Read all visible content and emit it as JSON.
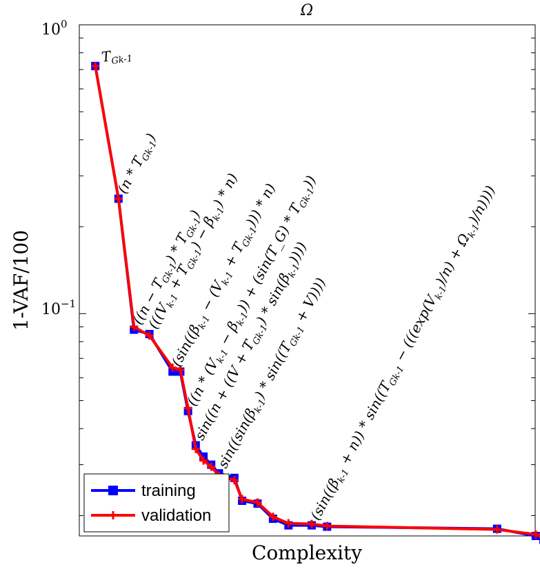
{
  "chart_data": {
    "type": "line",
    "title": "Ω",
    "xlabel": "Complexity",
    "ylabel": "1-VAF/100",
    "yscale": "log",
    "ylim": [
      0.017,
      1.0
    ],
    "xlim": [
      1,
      60
    ],
    "x_ticks_shown": false,
    "y_tick_labels": [
      {
        "value": 1.0,
        "base": "10",
        "exp": "0"
      },
      {
        "value": 0.1,
        "base": "10",
        "exp": "−1"
      }
    ],
    "legend": {
      "position": "bottom-left",
      "entries": [
        {
          "name": "training",
          "color": "#0000ff",
          "marker": "square"
        },
        {
          "name": "validation",
          "color": "#ff0000",
          "marker": "plus"
        }
      ]
    },
    "series": [
      {
        "name": "training",
        "color": "#0000ff",
        "x": [
          2,
          5,
          7,
          9,
          12,
          13,
          14,
          15,
          16,
          17,
          18,
          20,
          21,
          23,
          25,
          27,
          30,
          32,
          54,
          59,
          60
        ],
        "y": [
          0.72,
          0.25,
          0.088,
          0.085,
          0.063,
          0.063,
          0.046,
          0.035,
          0.032,
          0.03,
          0.028,
          0.027,
          0.0225,
          0.022,
          0.0195,
          0.0185,
          0.0185,
          0.0183,
          0.018,
          0.017,
          0.0165
        ]
      },
      {
        "name": "validation",
        "color": "#ff0000",
        "x": [
          2,
          5,
          7,
          9,
          12,
          13,
          14,
          15,
          16,
          17,
          18,
          20,
          21,
          23,
          25,
          27,
          30,
          32,
          54,
          59,
          60
        ],
        "y": [
          0.72,
          0.25,
          0.09,
          0.084,
          0.065,
          0.064,
          0.047,
          0.034,
          0.031,
          0.0295,
          0.0275,
          0.0265,
          0.0228,
          0.0222,
          0.0198,
          0.0188,
          0.0187,
          0.0184,
          0.0179,
          0.0172,
          0.0168
        ]
      }
    ],
    "annotations": [
      {
        "text": "T_{G_{k-1}}",
        "x": 2,
        "y": 0.72
      },
      {
        "text": "(n * T_{G_{k-1}})",
        "x": 5,
        "y": 0.25
      },
      {
        "text": "((n − T_{G_{k-1}}) * T_{G_{k-1}})",
        "x": 7,
        "y": 0.088
      },
      {
        "text": "(((V_{k-1} + T_{G_{k-1}}) − β_{k-1}) * n)",
        "x": 9,
        "y": 0.085
      },
      {
        "text": "(sin((β_{k-1} − (V_{k-1} + T_{G_{k-1}}))) * n)",
        "x": 12,
        "y": 0.063
      },
      {
        "text": "((n * (V_{k-1} − β_{k-1})) + (sin(T_G) * T_{G_{k-1}}))",
        "x": 14,
        "y": 0.046
      },
      {
        "text": "sin((n + ((V + T_{G_{k-1}}) * sin(β_{k-1}))))",
        "x": 15,
        "y": 0.035
      },
      {
        "text": "sin((sin(β_{k-1}) * sin((T_{G_{k-1}} + V))))",
        "x": 18,
        "y": 0.028
      },
      {
        "text": "(sin((β_{k-1} + n)) * sin((T_{G_{k-1}} − (((exp(V_{k-1})/n) + Ω_{k-1})/n))))",
        "x": 30,
        "y": 0.0185
      }
    ]
  }
}
